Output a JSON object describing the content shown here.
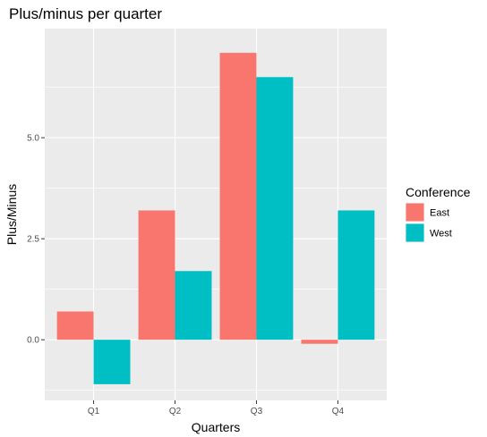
{
  "chart_data": {
    "type": "bar",
    "title": "Plus/minus per quarter",
    "xlabel": "Quarters",
    "ylabel": "Plus/Minus",
    "categories": [
      "Q1",
      "Q2",
      "Q3",
      "Q4"
    ],
    "series": [
      {
        "name": "East",
        "values": [
          0.7,
          3.2,
          7.1,
          -0.1
        ],
        "color": "#F8766D"
      },
      {
        "name": "West",
        "values": [
          -1.1,
          1.7,
          6.5,
          3.2
        ],
        "color": "#00BFC4"
      }
    ],
    "ylim": [
      -1.5,
      7.7
    ],
    "yticks": [
      0,
      2.5,
      5
    ],
    "ytick_labels": [
      "0.0",
      "2.5",
      "5.0"
    ],
    "grid": true,
    "legend": {
      "title": "Conference",
      "position": "right"
    },
    "panel_background": "#EBEBEB"
  }
}
